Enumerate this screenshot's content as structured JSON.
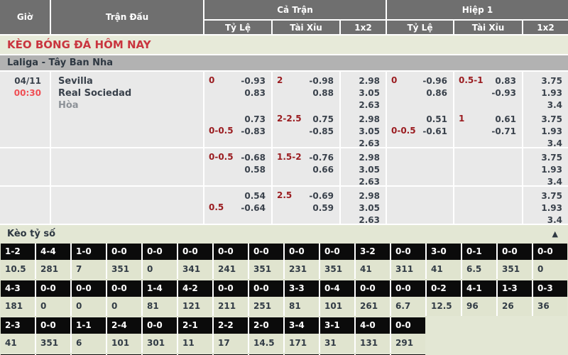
{
  "table_header": {
    "time": "Giờ",
    "match": "Trận Đấu",
    "full_time": "Cả Trận",
    "first_half": "Hiệp 1",
    "handicap": "Tỷ Lệ",
    "over_under": "Tài Xỉu",
    "one_x_two": "1x2"
  },
  "page_title": "KÈO BÓNG ĐÁ HÔM NAY",
  "league_title": "Laliga - Tây Ban Nha",
  "match": {
    "date": "04/11",
    "time": "00:30",
    "home_team": "Sevilla",
    "away_team": "Real Sociedad",
    "draw_label": "Hòa"
  },
  "odds_rows": [
    {
      "ft_hdp": {
        "label": "0",
        "line": 1,
        "top": "-0.93",
        "bottom": "0.83"
      },
      "ft_ou": {
        "label": "2",
        "line": 1,
        "top": "-0.98",
        "bottom": "0.88"
      },
      "ft_1x2": [
        "2.98",
        "3.05",
        "2.63"
      ],
      "h1_hdp": {
        "label": "0",
        "line": 1,
        "top": "-0.96",
        "bottom": "0.86"
      },
      "h1_ou": {
        "label": "0.5-1",
        "line": 1,
        "top": "0.83",
        "bottom": "-0.93"
      },
      "h1_1x2": [
        "3.75",
        "1.93",
        "3.4"
      ]
    },
    {
      "ft_hdp": {
        "label": "0-0.5",
        "line": 2,
        "top": "0.73",
        "bottom": "-0.83"
      },
      "ft_ou": {
        "label": "2-2.5",
        "line": 1,
        "top": "0.75",
        "bottom": "-0.85"
      },
      "ft_1x2": [
        "2.98",
        "3.05",
        "2.63"
      ],
      "h1_hdp": {
        "label": "0-0.5",
        "line": 2,
        "top": "0.51",
        "bottom": "-0.61"
      },
      "h1_ou": {
        "label": "1",
        "line": 1,
        "top": "0.61",
        "bottom": "-0.71"
      },
      "h1_1x2": [
        "3.75",
        "1.93",
        "3.4"
      ]
    },
    {
      "ft_hdp": {
        "label": "0-0.5",
        "line": 1,
        "top": "-0.68",
        "bottom": "0.58"
      },
      "ft_ou": {
        "label": "1.5-2",
        "line": 1,
        "top": "-0.76",
        "bottom": "0.66"
      },
      "ft_1x2": [
        "2.98",
        "3.05",
        "2.63"
      ],
      "h1_hdp": null,
      "h1_ou": null,
      "h1_1x2": [
        "3.75",
        "1.93",
        "3.4"
      ]
    },
    {
      "ft_hdp": {
        "label": "0.5",
        "line": 2,
        "top": "0.54",
        "bottom": "-0.64"
      },
      "ft_ou": {
        "label": "2.5",
        "line": 1,
        "top": "-0.69",
        "bottom": "0.59"
      },
      "ft_1x2": [
        "2.98",
        "3.05",
        "2.63"
      ],
      "h1_hdp": null,
      "h1_ou": null,
      "h1_1x2": [
        "3.75",
        "1.93",
        "3.4"
      ]
    }
  ],
  "score_section": {
    "title": "Kèo tỷ số",
    "collapse_icon": "▲",
    "rows": [
      {
        "scores": [
          "1-2",
          "4-4",
          "1-0",
          "0-0",
          "0-0",
          "0-0",
          "0-0",
          "0-0",
          "0-0",
          "0-0",
          "3-2",
          "0-0",
          "3-0",
          "0-1",
          "0-0",
          "0-0"
        ],
        "odds": [
          "10.5",
          "281",
          "7",
          "351",
          "0",
          "341",
          "241",
          "351",
          "231",
          "351",
          "41",
          "311",
          "41",
          "6.5",
          "351",
          "0"
        ]
      },
      {
        "scores": [
          "4-3",
          "0-0",
          "0-0",
          "0-0",
          "1-4",
          "4-2",
          "0-0",
          "0-0",
          "3-3",
          "0-4",
          "0-0",
          "0-0",
          "0-2",
          "4-1",
          "1-3",
          "0-3"
        ],
        "odds": [
          "181",
          "0",
          "0",
          "0",
          "81",
          "121",
          "211",
          "251",
          "81",
          "101",
          "261",
          "6.7",
          "12.5",
          "96",
          "26",
          "36"
        ]
      },
      {
        "scores": [
          "2-3",
          "0-0",
          "1-1",
          "2-4",
          "0-0",
          "2-1",
          "2-2",
          "2-0",
          "3-4",
          "3-1",
          "4-0",
          "0-0"
        ],
        "odds": [
          "41",
          "351",
          "6",
          "101",
          "301",
          "11",
          "17",
          "14.5",
          "171",
          "31",
          "131",
          "291"
        ]
      }
    ],
    "partial_row_cells": 12
  },
  "colors": {
    "header_gray": "#6f6f6f",
    "title_red": "#c9353f",
    "handicap_red": "#9a1b1f",
    "time_red": "#ef4e54",
    "section_green": "#e3e7d4",
    "score_cell_black": "#0b0b0b",
    "odds_cell_gray": "#e9e9e9"
  }
}
